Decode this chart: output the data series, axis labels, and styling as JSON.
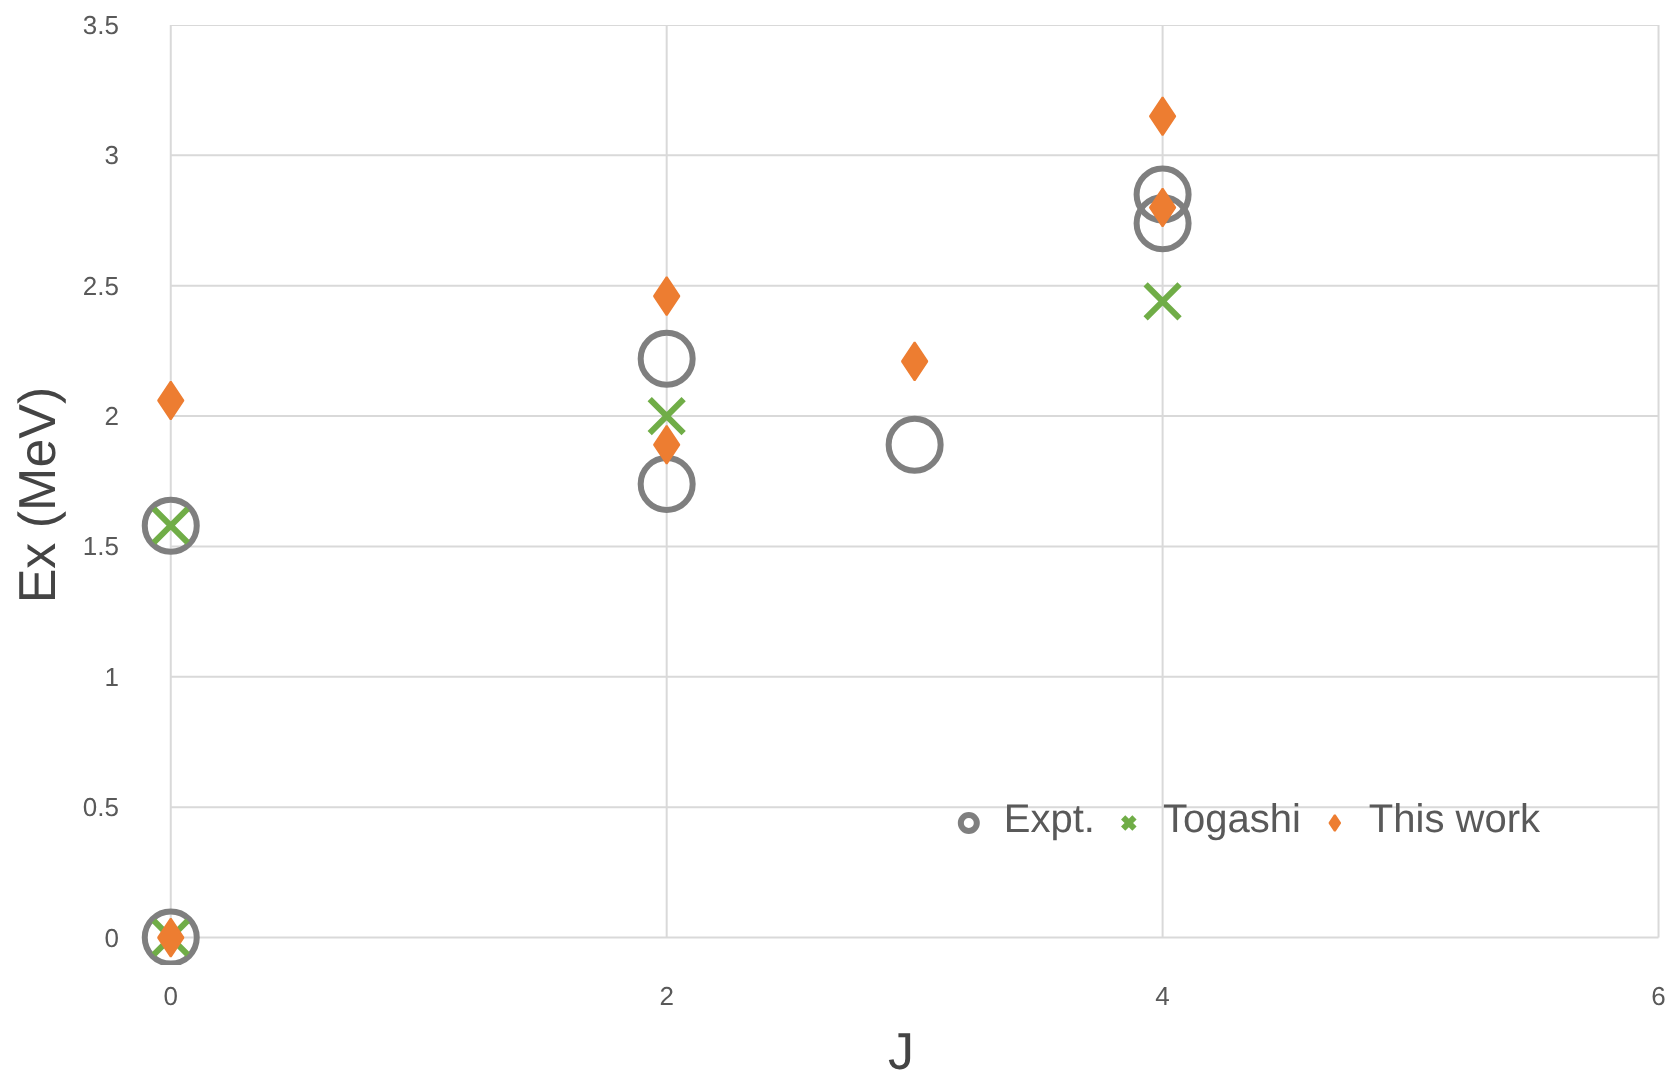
{
  "chart_data": {
    "type": "scatter",
    "xlabel": "J",
    "ylabel": "Ex (MeV)",
    "xlim": [
      0,
      6
    ],
    "xticks": [
      0,
      2,
      4,
      6
    ],
    "ylim": [
      0,
      3.5
    ],
    "yticks": [
      0,
      0.5,
      1,
      1.5,
      2,
      2.5,
      3,
      3.5
    ],
    "grid": true,
    "legend": "bottom right",
    "series": [
      {
        "name": "Expt.",
        "color": "#7f7f7f",
        "marker": "circle",
        "x": [
          0,
          0,
          2,
          2,
          3,
          4,
          4
        ],
        "values": [
          0,
          1.58,
          2.22,
          1.74,
          1.89,
          2.85,
          2.74
        ]
      },
      {
        "name": "Togashi",
        "color": "#70ad47",
        "marker": "cross",
        "x": [
          0,
          0,
          2,
          4
        ],
        "values": [
          0,
          1.58,
          2.0,
          2.44
        ]
      },
      {
        "name": "This work",
        "color": "#ed7d31",
        "marker": "diamond",
        "x": [
          0,
          0,
          2,
          2,
          3,
          4,
          4
        ],
        "values": [
          2.06,
          0,
          2.46,
          1.89,
          2.21,
          3.15,
          2.8
        ]
      }
    ]
  }
}
